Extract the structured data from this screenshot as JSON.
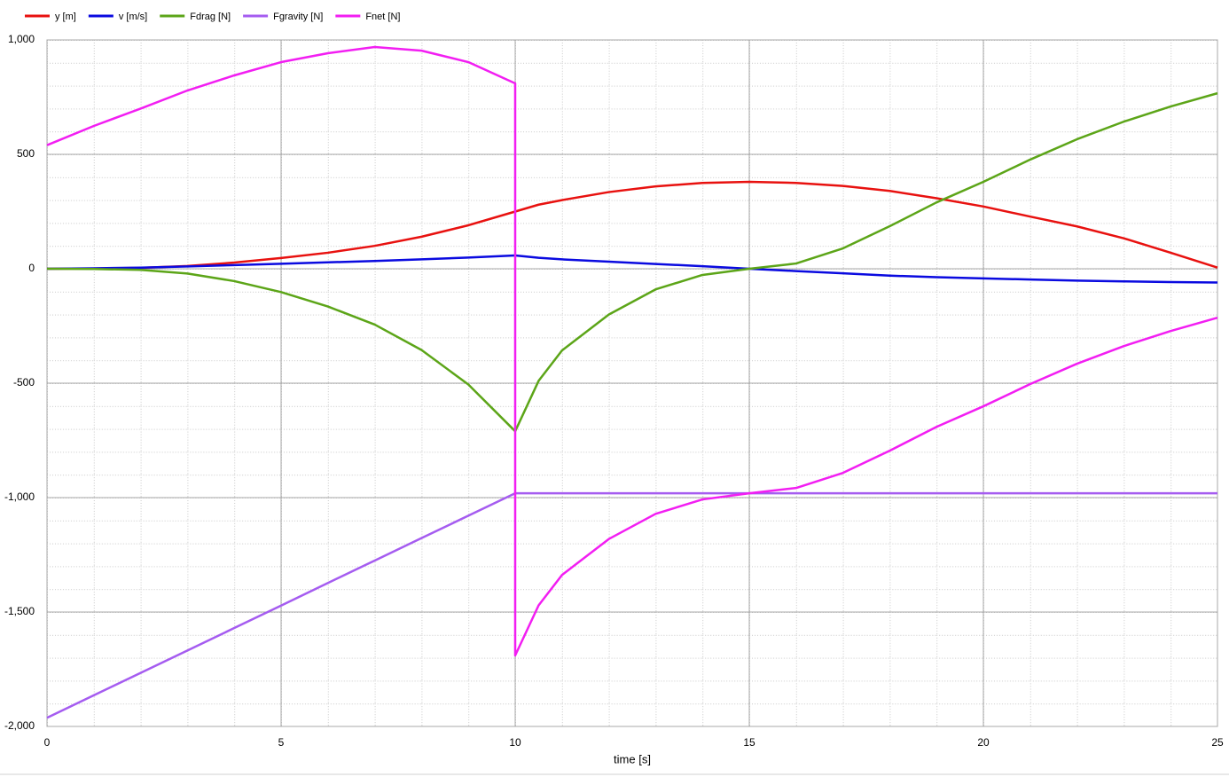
{
  "chart_data": {
    "type": "line",
    "x_label": "time [s]",
    "x": [
      0,
      1,
      2,
      3,
      4,
      5,
      6,
      7,
      8,
      9,
      10,
      10,
      10.5,
      11,
      12,
      13,
      14,
      15,
      16,
      17,
      18,
      19,
      20,
      21,
      22,
      23,
      24,
      25
    ],
    "series": [
      {
        "name": "y [m]",
        "color": "#e8110f",
        "values": [
          0,
          1,
          4,
          12,
          27,
          47,
          70,
          100,
          140,
          190,
          250,
          250,
          280,
          300,
          335,
          360,
          375,
          380,
          375,
          362,
          340,
          308,
          272,
          228,
          185,
          133,
          70,
          5
        ]
      },
      {
        "name": "v [m/s]",
        "color": "#0a0ae0",
        "values": [
          0,
          2,
          5,
          10,
          16,
          22,
          28,
          34,
          41,
          49,
          58,
          58,
          48,
          41,
          31,
          21,
          11,
          0,
          -10,
          -20,
          -30,
          -37,
          -42,
          -47,
          -52,
          -55,
          -58,
          -60
        ]
      },
      {
        "name": "Fdrag [N]",
        "color": "#5ca518",
        "values": [
          0,
          -1,
          -5,
          -21,
          -54,
          -102,
          -165,
          -244,
          -355,
          -506,
          -710,
          -710,
          -490,
          -357,
          -200,
          -90,
          -27,
          0,
          23,
          89,
          186,
          290,
          380,
          477,
          566,
          643,
          709,
          767
        ]
      },
      {
        "name": "Fgravity [N]",
        "color": "#a55cf0",
        "values": [
          -1962,
          -1864,
          -1766,
          -1668,
          -1570,
          -1472,
          -1373,
          -1275,
          -1177,
          -1079,
          -981,
          -981,
          -981,
          -981,
          -981,
          -981,
          -981,
          -981,
          -981,
          -981,
          -981,
          -981,
          -981,
          -981,
          -981,
          -981,
          -981,
          -981
        ]
      },
      {
        "name": "Fnet [N]",
        "color": "#f21ef2",
        "values": [
          540,
          624,
          700,
          779,
          845,
          903,
          942,
          969,
          953,
          903,
          810,
          -1690,
          -1471,
          -1338,
          -1181,
          -1071,
          -1008,
          -981,
          -958,
          -892,
          -795,
          -691,
          -601,
          -504,
          -415,
          -338,
          -272,
          -214
        ]
      }
    ],
    "xlim": [
      0,
      25
    ],
    "xticks": [
      0,
      5,
      10,
      15,
      20,
      25
    ],
    "ylim": [
      -2000,
      1000
    ],
    "yticks": [
      {
        "value": -2000,
        "label": "-2,000"
      },
      {
        "value": -1500,
        "label": "-1,500"
      },
      {
        "value": -1000,
        "label": "-1,000"
      },
      -500,
      0,
      500,
      {
        "value": 1000,
        "label": "1,000"
      }
    ],
    "grid": true,
    "legend": "top-left"
  }
}
